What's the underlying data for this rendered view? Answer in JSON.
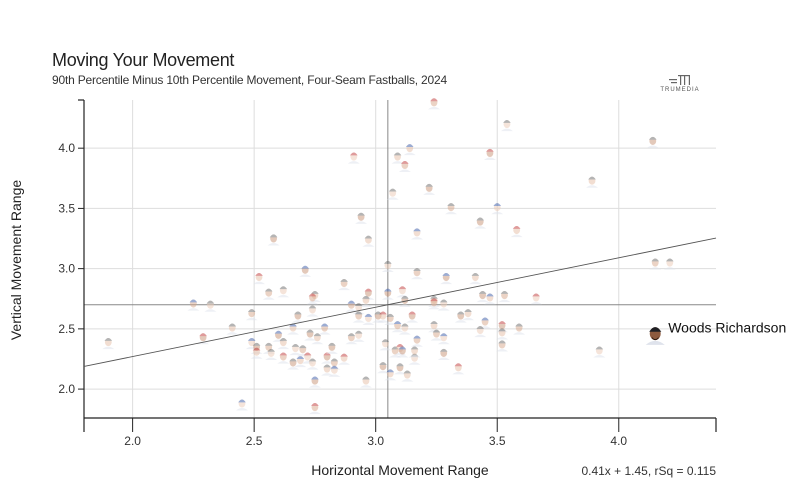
{
  "header": {
    "title": "Moving Your Movement",
    "subtitle": "90th Percentile Minus 10th Percentile Movement, Four-Seam Fastballs, 2024",
    "logo_text": "TRUMEDIA"
  },
  "chart_data": {
    "type": "scatter",
    "title": "Moving Your Movement",
    "subtitle": "90th Percentile Minus 10th Percentile Movement, Four-Seam Fastballs, 2024",
    "xlabel": "Horizontal Movement Range",
    "ylabel": "Vertical Movement Range",
    "xlim": [
      1.8,
      4.4
    ],
    "ylim": [
      1.76,
      4.4
    ],
    "x_ticks": [
      "2.0",
      "2.5",
      "3.0",
      "3.5",
      "4.0"
    ],
    "y_ticks": [
      "2.0",
      "2.5",
      "3.0",
      "3.5",
      "4.0"
    ],
    "grid": true,
    "marker": "player-headshot",
    "reference_lines": {
      "x": 3.05,
      "y": 2.7
    },
    "regression": {
      "slope": 0.41,
      "intercept": 1.45,
      "rsq": 0.115,
      "label": "0.41x + 1.45, rSq = 0.115"
    },
    "highlight": {
      "label": "Woods Richardson",
      "x": 4.15,
      "y": 2.46
    },
    "colors": {
      "grid": "#dddddd",
      "reference": "#888888",
      "regression": "#555555",
      "cap_gray": "#6b6b6b",
      "cap_blue": "#3a5ba8",
      "cap_red": "#c03a3a"
    },
    "points": [
      [
        1.9,
        2.39
      ],
      [
        2.25,
        2.71
      ],
      [
        2.32,
        2.7
      ],
      [
        2.29,
        2.43
      ],
      [
        2.41,
        2.51
      ],
      [
        2.49,
        2.63
      ],
      [
        2.45,
        1.88
      ],
      [
        2.58,
        3.25
      ],
      [
        2.52,
        2.93
      ],
      [
        2.56,
        2.8
      ],
      [
        2.62,
        2.82
      ],
      [
        2.71,
        2.99
      ],
      [
        2.75,
        2.78
      ],
      [
        2.74,
        2.76
      ],
      [
        2.74,
        2.66
      ],
      [
        2.68,
        2.61
      ],
      [
        2.66,
        2.51
      ],
      [
        2.87,
        2.88
      ],
      [
        2.91,
        3.93
      ],
      [
        2.94,
        3.43
      ],
      [
        2.97,
        3.24
      ],
      [
        2.9,
        2.7
      ],
      [
        2.93,
        2.68
      ],
      [
        2.97,
        2.8
      ],
      [
        2.96,
        2.74
      ],
      [
        2.93,
        2.61
      ],
      [
        2.97,
        2.59
      ],
      [
        3.01,
        2.61
      ],
      [
        3.03,
        2.61
      ],
      [
        3.06,
        2.59
      ],
      [
        3.05,
        3.03
      ],
      [
        3.05,
        2.8
      ],
      [
        3.09,
        3.93
      ],
      [
        3.12,
        3.86
      ],
      [
        3.07,
        3.63
      ],
      [
        3.22,
        3.67
      ],
      [
        3.17,
        3.3
      ],
      [
        3.17,
        2.97
      ],
      [
        3.11,
        2.82
      ],
      [
        3.12,
        2.74
      ],
      [
        3.24,
        2.74
      ],
      [
        3.09,
        2.53
      ],
      [
        3.12,
        2.51
      ],
      [
        3.15,
        2.61
      ],
      [
        3.24,
        2.53
      ],
      [
        3.25,
        2.46
      ],
      [
        2.49,
        2.39
      ],
      [
        2.51,
        2.35
      ],
      [
        2.51,
        2.31
      ],
      [
        2.56,
        2.35
      ],
      [
        2.57,
        2.3
      ],
      [
        2.6,
        2.45
      ],
      [
        2.62,
        2.39
      ],
      [
        2.62,
        2.27
      ],
      [
        2.67,
        2.34
      ],
      [
        2.66,
        2.22
      ],
      [
        2.69,
        2.24
      ],
      [
        2.7,
        2.33
      ],
      [
        2.72,
        2.27
      ],
      [
        2.73,
        2.46
      ],
      [
        2.76,
        2.43
      ],
      [
        2.79,
        2.51
      ],
      [
        2.74,
        2.22
      ],
      [
        2.8,
        2.27
      ],
      [
        2.8,
        2.17
      ],
      [
        2.83,
        2.22
      ],
      [
        2.83,
        2.16
      ],
      [
        2.82,
        2.35
      ],
      [
        2.87,
        2.26
      ],
      [
        2.9,
        2.43
      ],
      [
        2.93,
        2.45
      ],
      [
        2.75,
        2.07
      ],
      [
        2.96,
        2.07
      ],
      [
        2.75,
        1.85
      ],
      [
        3.04,
        2.38
      ],
      [
        3.03,
        2.19
      ],
      [
        3.06,
        2.13
      ],
      [
        3.08,
        2.32
      ],
      [
        3.1,
        2.34
      ],
      [
        3.1,
        2.18
      ],
      [
        3.13,
        2.12
      ],
      [
        3.17,
        2.41
      ],
      [
        3.16,
        2.26
      ],
      [
        3.47,
        3.96
      ],
      [
        3.89,
        3.73
      ],
      [
        3.31,
        3.51
      ],
      [
        3.5,
        3.51
      ],
      [
        3.43,
        3.39
      ],
      [
        3.58,
        3.32
      ],
      [
        4.15,
        3.05
      ],
      [
        4.21,
        3.05
      ],
      [
        3.29,
        2.93
      ],
      [
        3.41,
        2.93
      ],
      [
        3.24,
        2.72
      ],
      [
        3.28,
        2.71
      ],
      [
        3.44,
        2.78
      ],
      [
        3.47,
        2.76
      ],
      [
        3.53,
        2.78
      ],
      [
        3.66,
        2.76
      ],
      [
        3.35,
        2.61
      ],
      [
        3.38,
        2.63
      ],
      [
        3.45,
        2.56
      ],
      [
        3.43,
        2.49
      ],
      [
        3.52,
        2.53
      ],
      [
        3.52,
        2.47
      ],
      [
        3.59,
        2.51
      ],
      [
        3.28,
        2.43
      ],
      [
        3.28,
        2.3
      ],
      [
        3.34,
        2.18
      ],
      [
        3.52,
        2.37
      ],
      [
        3.92,
        2.32
      ],
      [
        3.11,
        2.32
      ],
      [
        3.16,
        2.32
      ],
      [
        3.24,
        4.38
      ],
      [
        3.54,
        4.2
      ],
      [
        4.14,
        4.06
      ],
      [
        3.14,
        4.0
      ]
    ]
  }
}
